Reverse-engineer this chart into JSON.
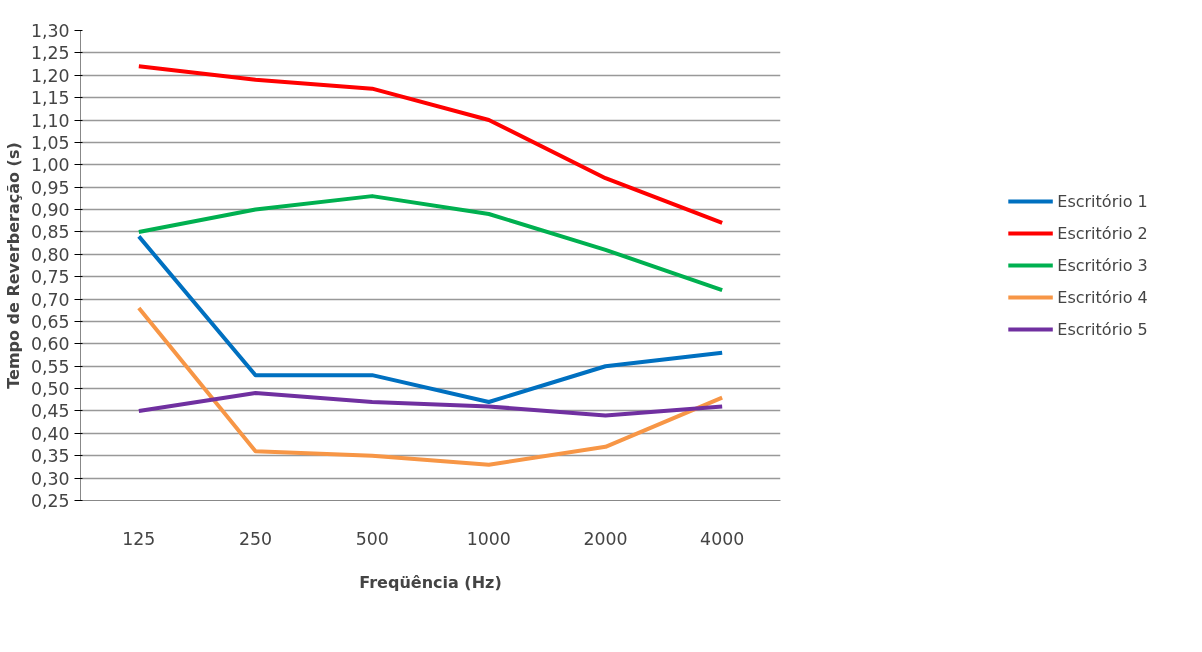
{
  "chart_data": {
    "type": "line",
    "xlabel": "Freqüência (Hz)",
    "ylabel": "Tempo de Reverberação (s)",
    "categories": [
      "125",
      "250",
      "500",
      "1000",
      "2000",
      "4000"
    ],
    "series": [
      {
        "name": "Escritório 1",
        "color": "#0070c0",
        "values": [
          0.84,
          0.53,
          0.53,
          0.47,
          0.55,
          0.58
        ]
      },
      {
        "name": "Escritório 2",
        "color": "#ff0000",
        "values": [
          1.22,
          1.19,
          1.17,
          1.1,
          0.97,
          0.87
        ]
      },
      {
        "name": "Escritório 3",
        "color": "#00b050",
        "values": [
          0.85,
          0.9,
          0.93,
          0.89,
          0.81,
          0.72
        ]
      },
      {
        "name": "Escritório 4",
        "color": "#f79646",
        "values": [
          0.68,
          0.36,
          0.35,
          0.33,
          0.37,
          0.48
        ]
      },
      {
        "name": "Escritório 5",
        "color": "#7030a0",
        "values": [
          0.45,
          0.49,
          0.47,
          0.46,
          0.44,
          0.46
        ]
      }
    ],
    "ylim": [
      0.25,
      1.3
    ],
    "yticks": [
      {
        "value": 0.25,
        "label": "0,25"
      },
      {
        "value": 0.3,
        "label": "0,30"
      },
      {
        "value": 0.35,
        "label": "0,35"
      },
      {
        "value": 0.4,
        "label": "0,40"
      },
      {
        "value": 0.45,
        "label": "0,45"
      },
      {
        "value": 0.5,
        "label": "0,50"
      },
      {
        "value": 0.55,
        "label": "0,55"
      },
      {
        "value": 0.6,
        "label": "0,60"
      },
      {
        "value": 0.65,
        "label": "0,65"
      },
      {
        "value": 0.7,
        "label": "0,70"
      },
      {
        "value": 0.75,
        "label": "0,75"
      },
      {
        "value": 0.8,
        "label": "0,80"
      },
      {
        "value": 0.85,
        "label": "0,85"
      },
      {
        "value": 0.9,
        "label": "0,90"
      },
      {
        "value": 0.95,
        "label": "0,95"
      },
      {
        "value": 1.0,
        "label": "1,00"
      },
      {
        "value": 1.05,
        "label": "1,05"
      },
      {
        "value": 1.1,
        "label": "1,10"
      },
      {
        "value": 1.15,
        "label": "1,15"
      },
      {
        "value": 1.2,
        "label": "1,20"
      },
      {
        "value": 1.25,
        "label": "1,25"
      },
      {
        "value": 1.3,
        "label": "1,30"
      }
    ],
    "grid": "y",
    "legend": "right",
    "marker": "none",
    "line_style": "solid"
  }
}
